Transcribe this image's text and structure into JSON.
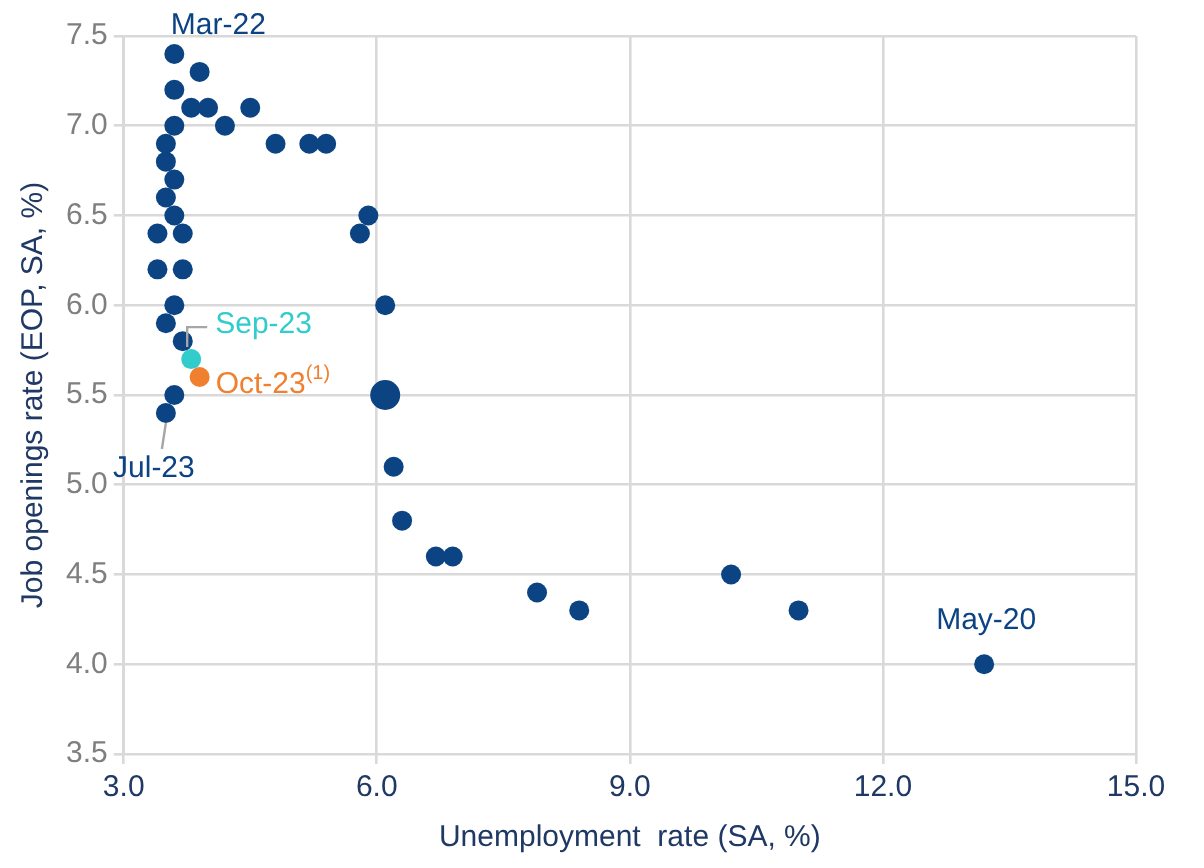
{
  "chart_data": {
    "type": "scatter",
    "xlabel": "Unemployment  rate (SA, %)",
    "ylabel": "Job openings rate (EOP, SA, %)",
    "xlim": [
      3,
      15
    ],
    "xticks": [
      {
        "value": 3,
        "label": "3.0"
      },
      {
        "value": 6,
        "label": "6.0"
      },
      {
        "value": 9,
        "label": "9.0"
      },
      {
        "value": 12,
        "label": "12.0"
      },
      {
        "value": 15,
        "label": "15.0"
      }
    ],
    "ylim": [
      3.5,
      7.5
    ],
    "yticks": [
      {
        "value": 3.5,
        "label": "3.5"
      },
      {
        "value": 4,
        "label": "4.0"
      },
      {
        "value": 4.5,
        "label": "4.5"
      },
      {
        "value": 5,
        "label": "5.0"
      },
      {
        "value": 5.5,
        "label": "5.5"
      },
      {
        "value": 6,
        "label": "6.0"
      },
      {
        "value": 6.5,
        "label": "6.5"
      },
      {
        "value": 7,
        "label": "7.0"
      },
      {
        "value": 7.5,
        "label": "7.5"
      }
    ],
    "grid": true,
    "marker": "circle",
    "series": [
      {
        "color": "#0b4383",
        "x": [
          3.6,
          3.9,
          3.6,
          3.8,
          4.0,
          4.5,
          3.6,
          4.2,
          3.5,
          4.8,
          5.2,
          5.4,
          3.5,
          3.6,
          3.5,
          3.6,
          5.9,
          5.8,
          3.4,
          3.7,
          3.4,
          3.7,
          3.6,
          6.1,
          3.5,
          3.7,
          3.6,
          3.5,
          6.2,
          6.3,
          6.7,
          6.9,
          7.9,
          8.4,
          10.2,
          11.0,
          13.2
        ],
        "values": [
          7.4,
          7.3,
          7.2,
          7.1,
          7.1,
          7.1,
          7.0,
          7.0,
          6.9,
          6.9,
          6.9,
          6.9,
          6.8,
          6.7,
          6.6,
          6.5,
          6.5,
          6.4,
          6.4,
          6.4,
          6.2,
          6.2,
          6.0,
          6.0,
          5.9,
          5.8,
          5.5,
          5.4,
          5.1,
          4.8,
          4.6,
          4.6,
          4.4,
          4.3,
          4.5,
          4.3,
          4.0
        ]
      },
      {
        "color": "#0b4383",
        "x": [
          6.1
        ],
        "values": [
          5.5
        ]
      },
      {
        "name": "Sep-23",
        "color": "#33cccc",
        "x": [
          3.8
        ],
        "values": [
          5.7
        ]
      },
      {
        "name": "Oct-23$^{(1)}$",
        "color": "#f07f2f",
        "x": [
          3.9
        ],
        "values": [
          5.6
        ]
      }
    ],
    "annotations": [
      {
        "text": "Mar-22",
        "x": 3.6,
        "y": 7.4
      },
      {
        "text": "Jul-23",
        "x": 3.5,
        "y": 5.4
      },
      {
        "text": "May-20",
        "x": 13.2,
        "y": 4.0
      }
    ]
  }
}
